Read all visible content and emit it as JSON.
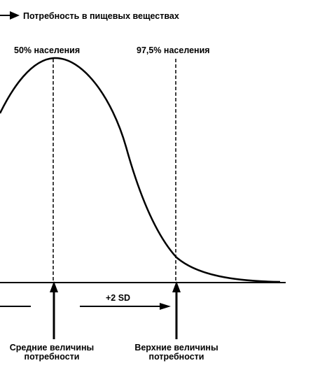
{
  "title": "Потребность в пищевых веществах",
  "labels": {
    "mean_population": "50% населения",
    "upper_population": "97,5% населения",
    "sd": "+2 SD",
    "mean_line1": "Средние величины",
    "mean_line2": "потребности",
    "upper_line1": "Верхние величины",
    "upper_line2": "потребности"
  },
  "colors": {
    "ink": "#000000",
    "background": "#ffffff"
  }
}
